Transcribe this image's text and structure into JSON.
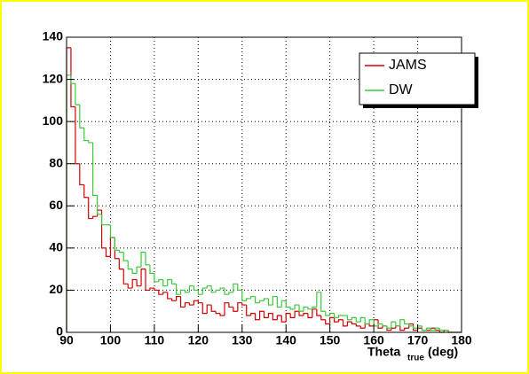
{
  "chart_data": {
    "type": "histogram",
    "x_label": {
      "main": "Theta",
      "sub": "true",
      "unit": "(deg)"
    },
    "bins": [
      90,
      91,
      92,
      93,
      94,
      95,
      96,
      97,
      98,
      99,
      100,
      101,
      102,
      103,
      104,
      105,
      106,
      107,
      108,
      109,
      110,
      111,
      112,
      113,
      114,
      115,
      116,
      117,
      118,
      119,
      120,
      121,
      122,
      123,
      124,
      125,
      126,
      127,
      128,
      129,
      130,
      131,
      132,
      133,
      134,
      135,
      136,
      137,
      138,
      139,
      140,
      141,
      142,
      143,
      144,
      145,
      146,
      147,
      148,
      149,
      150,
      151,
      152,
      153,
      154,
      155,
      156,
      157,
      158,
      159,
      160,
      161,
      162,
      163,
      164,
      165,
      166,
      167,
      168,
      169,
      170,
      171,
      172,
      173,
      174,
      175,
      176,
      177,
      178,
      179,
      180
    ],
    "series": [
      {
        "name": "JAMS",
        "color": "#d40000",
        "values": [
          135,
          107,
          80,
          70,
          64,
          54,
          55,
          58,
          40,
          36,
          45,
          35,
          30,
          23,
          21,
          25,
          22,
          30,
          20,
          21,
          20,
          18,
          19,
          16,
          15,
          17,
          12,
          14,
          13,
          15,
          14,
          9,
          13,
          10,
          9,
          8,
          14,
          12,
          10,
          14,
          13,
          8,
          9,
          6,
          10,
          7,
          9,
          6,
          8,
          5,
          9,
          7,
          10,
          8,
          9,
          7,
          11,
          8,
          6,
          4,
          7,
          5,
          6,
          3,
          5,
          4,
          3,
          2,
          4,
          3,
          6,
          2,
          3,
          1,
          2,
          3,
          1,
          2,
          4,
          1,
          2,
          1,
          1,
          2,
          1,
          0,
          1,
          0,
          0,
          0
        ]
      },
      {
        "name": "DW",
        "color": "#3cc83c",
        "values": [
          122,
          118,
          108,
          97,
          91,
          90,
          65,
          56,
          51,
          51,
          45,
          39,
          38,
          34,
          30,
          28,
          31,
          38,
          32,
          28,
          24,
          25,
          22,
          25,
          23,
          18,
          20,
          19,
          22,
          20,
          18,
          21,
          22,
          19,
          20,
          21,
          18,
          19,
          23,
          20,
          15,
          16,
          17,
          14,
          15,
          16,
          13,
          17,
          12,
          15,
          12,
          11,
          13,
          10,
          12,
          11,
          12,
          19,
          10,
          8,
          9,
          7,
          8,
          8,
          6,
          7,
          5,
          7,
          4,
          6,
          3,
          4,
          3,
          2,
          5,
          3,
          6,
          4,
          3,
          2,
          3,
          1,
          2,
          1,
          2,
          1,
          1,
          0,
          0,
          0
        ]
      }
    ],
    "xlim": [
      90,
      180
    ],
    "xticks": [
      90,
      100,
      110,
      120,
      130,
      140,
      150,
      160,
      170,
      180
    ],
    "ylim": [
      0,
      140
    ],
    "yticks": [
      0,
      20,
      40,
      60,
      80,
      100,
      120,
      140
    ],
    "grid": true,
    "legend": "upper right"
  }
}
